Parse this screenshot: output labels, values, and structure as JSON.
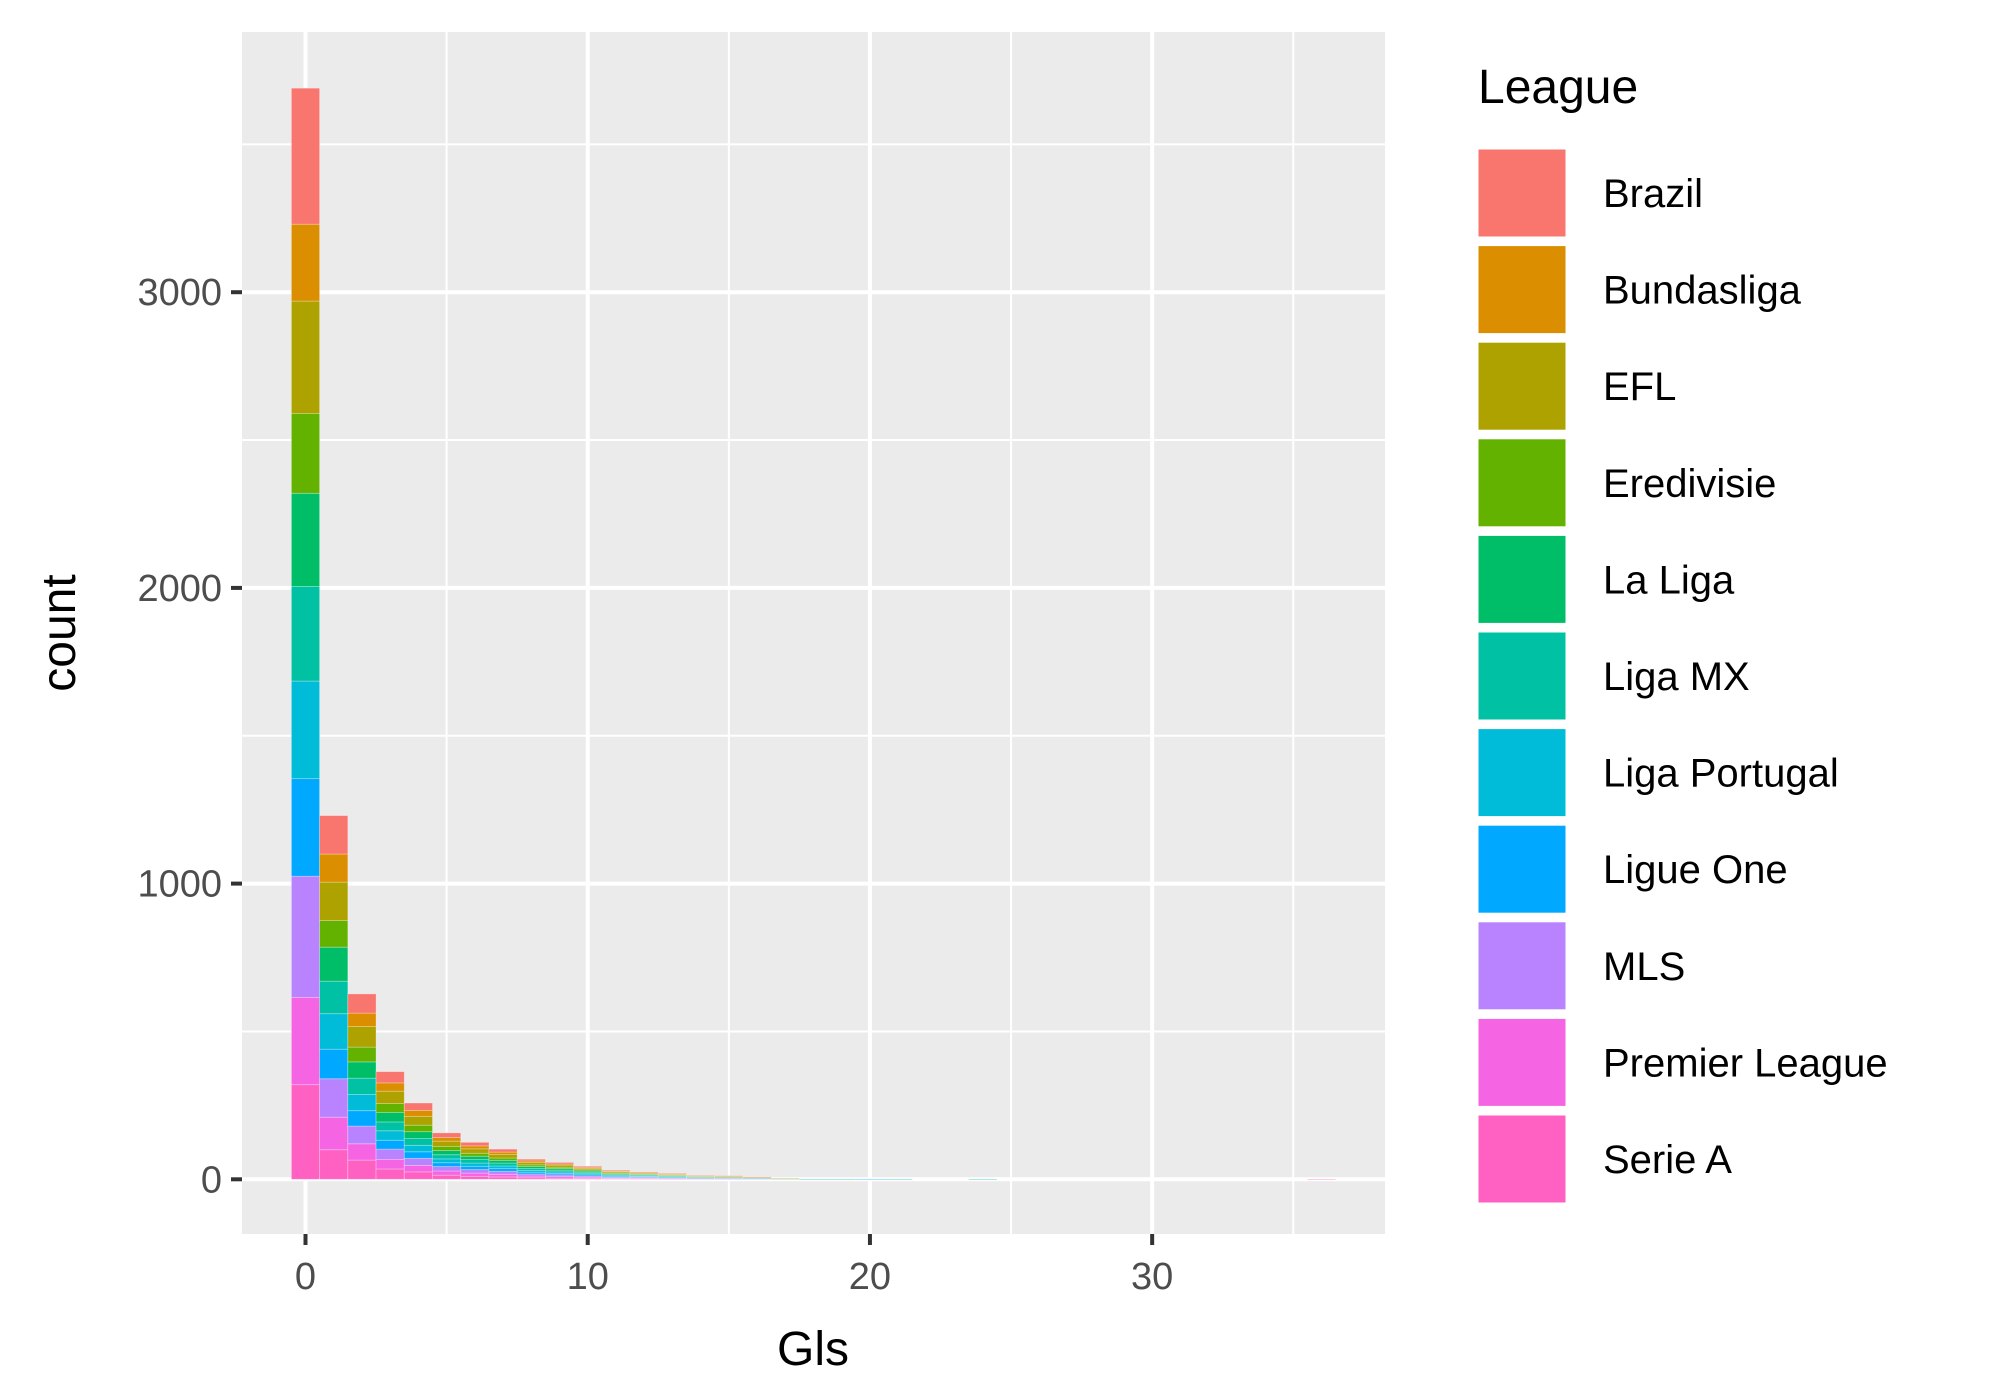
{
  "chart_data": {
    "type": "bar",
    "subtype": "stacked-histogram",
    "title": "",
    "xlabel": "Gls",
    "ylabel": "count",
    "xlim": [
      -2.25,
      38.25
    ],
    "ylim": [
      -185,
      3880
    ],
    "x_ticks": [
      0,
      10,
      20,
      30
    ],
    "y_ticks": [
      0,
      1000,
      2000,
      3000
    ],
    "x_tick_labels": [
      "0",
      "10",
      "20",
      "30"
    ],
    "y_tick_labels": [
      "0",
      "1000",
      "2000",
      "3000"
    ],
    "grid": true,
    "background": "#EBEBEB",
    "grid_color": "#FFFFFF",
    "legend": {
      "title": "League",
      "position": "right"
    },
    "bin_width": 1,
    "x": [
      0,
      1,
      2,
      3,
      4,
      5,
      6,
      7,
      8,
      9,
      10,
      11,
      12,
      13,
      14,
      15,
      16,
      17,
      18,
      19,
      20,
      21,
      22,
      23,
      24,
      25,
      26,
      27,
      28,
      29,
      30,
      31,
      32,
      33,
      34,
      35,
      36
    ],
    "series": [
      {
        "name": "Serie A",
        "color": "#FF61C3",
        "values": [
          320,
          100,
          65,
          35,
          25,
          14,
          10,
          8,
          5,
          4,
          3,
          2,
          2,
          1,
          1,
          1,
          0,
          0,
          0,
          0,
          0,
          0,
          0,
          0,
          0,
          0,
          0,
          0,
          0,
          0,
          0,
          0,
          0,
          0,
          0,
          0,
          1
        ]
      },
      {
        "name": "Premier League",
        "color": "#F564E3",
        "values": [
          295,
          110,
          55,
          32,
          22,
          14,
          11,
          9,
          6,
          5,
          4,
          2,
          2,
          1,
          1,
          1,
          1,
          0,
          0,
          0,
          0,
          0,
          0,
          0,
          0,
          0,
          0,
          0,
          0,
          0,
          0,
          0,
          0,
          0,
          0,
          0,
          0
        ]
      },
      {
        "name": "MLS",
        "color": "#B983FF",
        "values": [
          410,
          130,
          60,
          35,
          24,
          15,
          12,
          10,
          7,
          6,
          4,
          3,
          3,
          2,
          1,
          1,
          1,
          1,
          0,
          0,
          0,
          0,
          0,
          0,
          0,
          0,
          0,
          0,
          0,
          0,
          0,
          0,
          0,
          0,
          0,
          0,
          0
        ]
      },
      {
        "name": "Ligue One",
        "color": "#00A9FF",
        "values": [
          330,
          100,
          52,
          30,
          22,
          13,
          11,
          9,
          6,
          5,
          4,
          3,
          2,
          2,
          1,
          1,
          0,
          0,
          0,
          0,
          1,
          0,
          0,
          0,
          0,
          0,
          0,
          0,
          0,
          0,
          0,
          0,
          0,
          0,
          0,
          0,
          0
        ]
      },
      {
        "name": "Liga Portugal",
        "color": "#00BCD8",
        "values": [
          330,
          120,
          55,
          32,
          22,
          13,
          11,
          9,
          6,
          5,
          4,
          3,
          2,
          2,
          1,
          1,
          1,
          0,
          0,
          0,
          0,
          0,
          0,
          0,
          0,
          0,
          0,
          0,
          0,
          0,
          0,
          0,
          0,
          0,
          0,
          0,
          0
        ]
      },
      {
        "name": "Liga MX",
        "color": "#00C1A3",
        "values": [
          320,
          110,
          55,
          30,
          23,
          14,
          12,
          10,
          7,
          6,
          5,
          3,
          3,
          2,
          2,
          1,
          1,
          1,
          1,
          1,
          0,
          1,
          0,
          0,
          1,
          0,
          0,
          0,
          0,
          0,
          0,
          0,
          0,
          0,
          0,
          0,
          0
        ]
      },
      {
        "name": "La Liga",
        "color": "#00BE67",
        "values": [
          315,
          115,
          55,
          32,
          23,
          14,
          11,
          9,
          6,
          5,
          4,
          3,
          2,
          2,
          1,
          1,
          1,
          0,
          0,
          0,
          0,
          0,
          0,
          0,
          0,
          0,
          0,
          0,
          0,
          0,
          0,
          0,
          0,
          0,
          0,
          0,
          0
        ]
      },
      {
        "name": "Eredivisie",
        "color": "#64B200",
        "values": [
          270,
          90,
          50,
          30,
          22,
          14,
          10,
          8,
          6,
          5,
          4,
          3,
          2,
          2,
          1,
          1,
          1,
          0,
          0,
          0,
          0,
          0,
          0,
          0,
          0,
          0,
          0,
          0,
          0,
          0,
          0,
          0,
          0,
          0,
          0,
          0,
          0
        ]
      },
      {
        "name": "EFL",
        "color": "#AEA200",
        "values": [
          380,
          130,
          70,
          42,
          30,
          18,
          15,
          12,
          8,
          7,
          5,
          4,
          3,
          2,
          2,
          2,
          1,
          1,
          0,
          0,
          0,
          0,
          0,
          0,
          0,
          0,
          0,
          0,
          0,
          0,
          0,
          0,
          0,
          0,
          0,
          0,
          0
        ]
      },
      {
        "name": "Bundasliga",
        "color": "#DB8E00",
        "values": [
          260,
          95,
          45,
          28,
          20,
          12,
          10,
          8,
          5,
          4,
          3,
          2,
          2,
          2,
          1,
          1,
          0,
          0,
          0,
          0,
          0,
          0,
          0,
          0,
          0,
          0,
          0,
          0,
          0,
          0,
          0,
          0,
          0,
          0,
          0,
          0,
          0
        ]
      },
      {
        "name": "Brazil",
        "color": "#F8766D",
        "values": [
          460,
          130,
          65,
          38,
          25,
          16,
          12,
          10,
          6,
          5,
          4,
          3,
          2,
          2,
          1,
          1,
          1,
          0,
          0,
          0,
          0,
          0,
          0,
          0,
          0,
          0,
          0,
          0,
          0,
          0,
          0,
          0,
          0,
          0,
          0,
          0,
          0
        ]
      }
    ]
  }
}
